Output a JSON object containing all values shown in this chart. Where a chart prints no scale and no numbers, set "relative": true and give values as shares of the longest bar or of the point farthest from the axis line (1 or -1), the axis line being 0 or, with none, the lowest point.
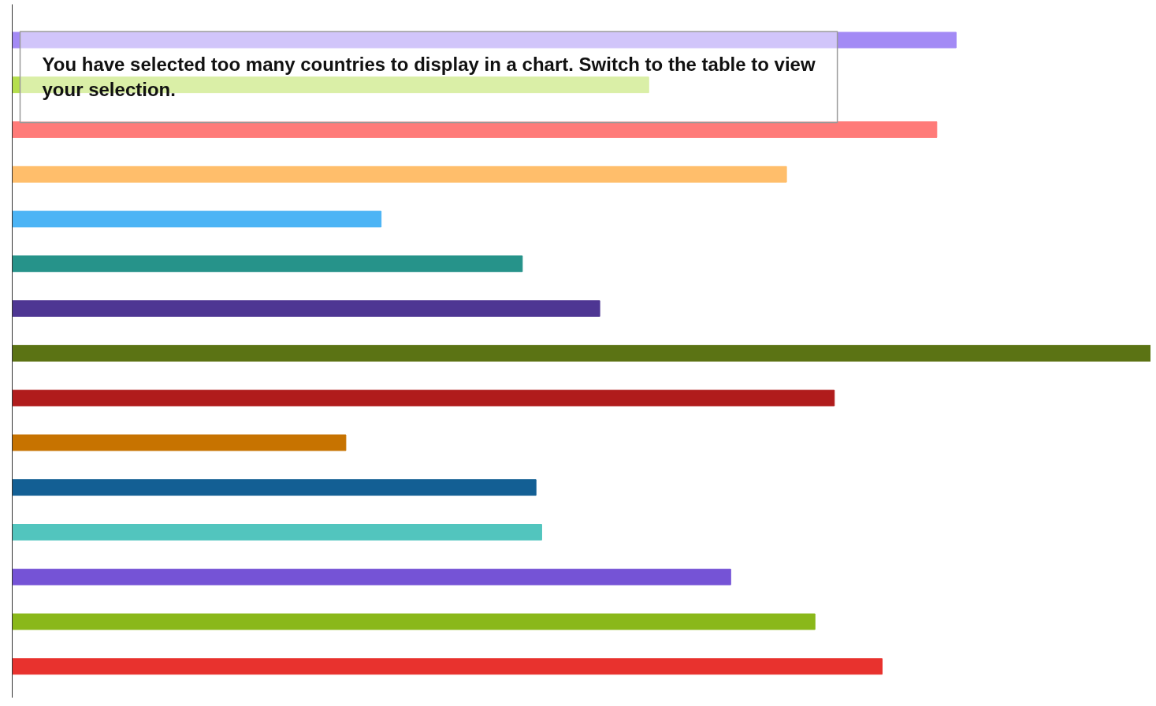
{
  "chart_data": {
    "type": "bar",
    "orientation": "horizontal",
    "relative": true,
    "categories": [
      null,
      null,
      null,
      null,
      null,
      null,
      null,
      null,
      null,
      null,
      null,
      null,
      null,
      null,
      null
    ],
    "values": [
      0.829,
      0.559,
      0.812,
      0.68,
      0.324,
      0.448,
      0.516,
      1,
      0.722,
      0.293,
      0.46,
      0.465,
      0.631,
      0.705,
      0.764
    ],
    "colors": [
      "#a38af5",
      "#b5de4e",
      "#ff7b79",
      "#ffbe6b",
      "#4cb4f5",
      "#26938a",
      "#4e3693",
      "#5b7314",
      "#b01c1c",
      "#c77300",
      "#135f94",
      "#52c5be",
      "#7553d6",
      "#8ab81a",
      "#e8322e"
    ],
    "annotations": [
      "You have selected too many countries to display in a chart. Switch to the table to view your selection."
    ]
  }
}
